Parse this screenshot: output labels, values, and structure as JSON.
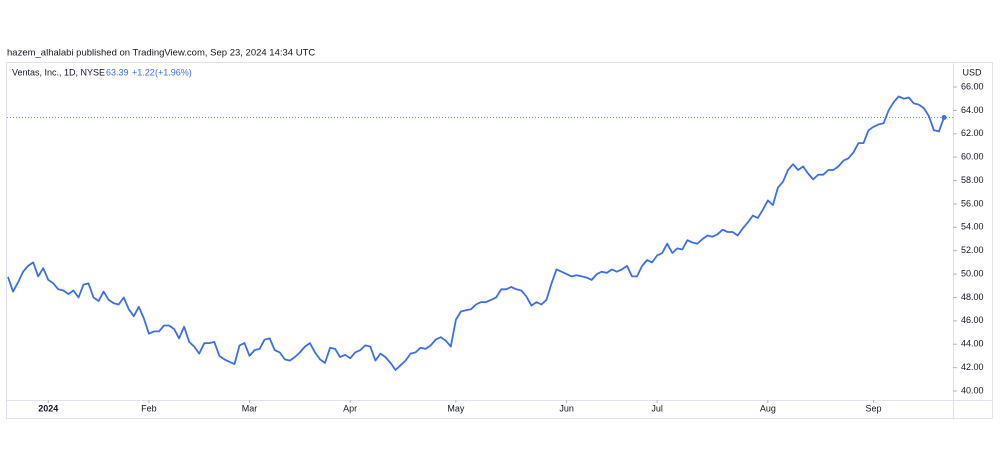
{
  "header": {
    "publisher": "hazem_alhalabi published on TradingView.com, Sep 23, 2024 14:34 UTC"
  },
  "chart_data": {
    "type": "line",
    "series": [
      {
        "name": "Ventas, Inc., 1D, NYSE",
        "color": "#3d6fe0",
        "values": [
          49.75,
          48.5,
          49.3,
          50.2,
          50.7,
          51.0,
          49.8,
          50.5,
          49.5,
          49.2,
          48.7,
          48.6,
          48.3,
          48.6,
          48.0,
          49.1,
          49.2,
          48.0,
          47.7,
          48.5,
          47.8,
          47.5,
          47.4,
          48.0,
          47.0,
          46.4,
          47.2,
          46.2,
          44.9,
          45.1,
          45.1,
          45.6,
          45.6,
          45.3,
          44.5,
          45.5,
          44.2,
          43.8,
          43.2,
          44.1,
          44.1,
          44.2,
          43.0,
          42.7,
          42.5,
          42.3,
          43.9,
          44.1,
          43.0,
          43.5,
          43.6,
          44.4,
          44.5,
          43.5,
          43.3,
          42.7,
          42.6,
          42.9,
          43.3,
          43.8,
          44.1,
          43.3,
          42.7,
          42.4,
          43.7,
          43.6,
          42.9,
          43.1,
          42.8,
          43.3,
          43.5,
          43.9,
          43.8,
          42.6,
          43.2,
          42.9,
          42.4,
          41.8,
          42.2,
          42.6,
          43.2,
          43.3,
          43.7,
          43.6,
          43.9,
          44.4,
          44.6,
          44.3,
          43.8,
          46.1,
          46.8,
          46.9,
          47.0,
          47.4,
          47.6,
          47.6,
          47.8,
          48.0,
          48.7,
          48.7,
          48.9,
          48.7,
          48.6,
          48.1,
          47.3,
          47.6,
          47.4,
          47.8,
          49.2,
          50.4,
          50.2,
          50.0,
          49.8,
          49.9,
          49.8,
          49.7,
          49.5,
          50.0,
          50.2,
          50.1,
          50.4,
          50.2,
          50.4,
          50.7,
          49.8,
          49.8,
          50.7,
          51.2,
          51.0,
          51.6,
          51.8,
          52.6,
          51.8,
          52.2,
          52.1,
          52.9,
          52.7,
          52.6,
          53.0,
          53.3,
          53.2,
          53.4,
          53.8,
          53.6,
          53.6,
          53.3,
          53.9,
          54.4,
          55.0,
          54.8,
          55.5,
          56.3,
          55.9,
          57.4,
          57.9,
          58.9,
          59.4,
          58.9,
          59.2,
          58.6,
          58.1,
          58.5,
          58.5,
          58.9,
          58.9,
          59.2,
          59.7,
          59.9,
          60.4,
          61.2,
          61.2,
          62.3,
          62.6,
          62.8,
          62.9,
          64.0,
          64.7,
          65.2,
          65.0,
          65.1,
          64.6,
          64.5,
          64.2,
          63.5,
          62.3,
          62.2,
          63.39
        ]
      }
    ],
    "change": {
      "value": 1.22,
      "label": "+1.22"
    },
    "change_percent": {
      "value": 1.96,
      "label": "(+1.96%)"
    },
    "currency": "USD",
    "ylim": [
      39.23,
      68.14
    ],
    "yticks": [
      {
        "value": 40,
        "label": "40.00"
      },
      {
        "value": 42,
        "label": "42.00"
      },
      {
        "value": 44,
        "label": "44.00"
      },
      {
        "value": 46,
        "label": "46.00"
      },
      {
        "value": 48,
        "label": "48.00"
      },
      {
        "value": 50,
        "label": "50.00"
      },
      {
        "value": 52,
        "label": "52.00"
      },
      {
        "value": 54,
        "label": "54.00"
      },
      {
        "value": 56,
        "label": "56.00"
      },
      {
        "value": 58,
        "label": "58.00"
      },
      {
        "value": 60,
        "label": "60.00"
      },
      {
        "value": 62,
        "label": "62.00"
      },
      {
        "value": 64,
        "label": "64.00"
      },
      {
        "value": 66,
        "label": "66.00"
      }
    ],
    "xticks": [
      {
        "value": 8,
        "label": "2024"
      },
      {
        "value": 28,
        "label": "Feb"
      },
      {
        "value": 48,
        "label": "Mar"
      },
      {
        "value": 68,
        "label": "Apr"
      },
      {
        "value": 89,
        "label": "May"
      },
      {
        "value": 111,
        "label": "Jun"
      },
      {
        "value": 129,
        "label": "Jul"
      },
      {
        "value": 151,
        "label": "Aug"
      },
      {
        "value": 172,
        "label": "Sep"
      }
    ],
    "grid": false
  }
}
